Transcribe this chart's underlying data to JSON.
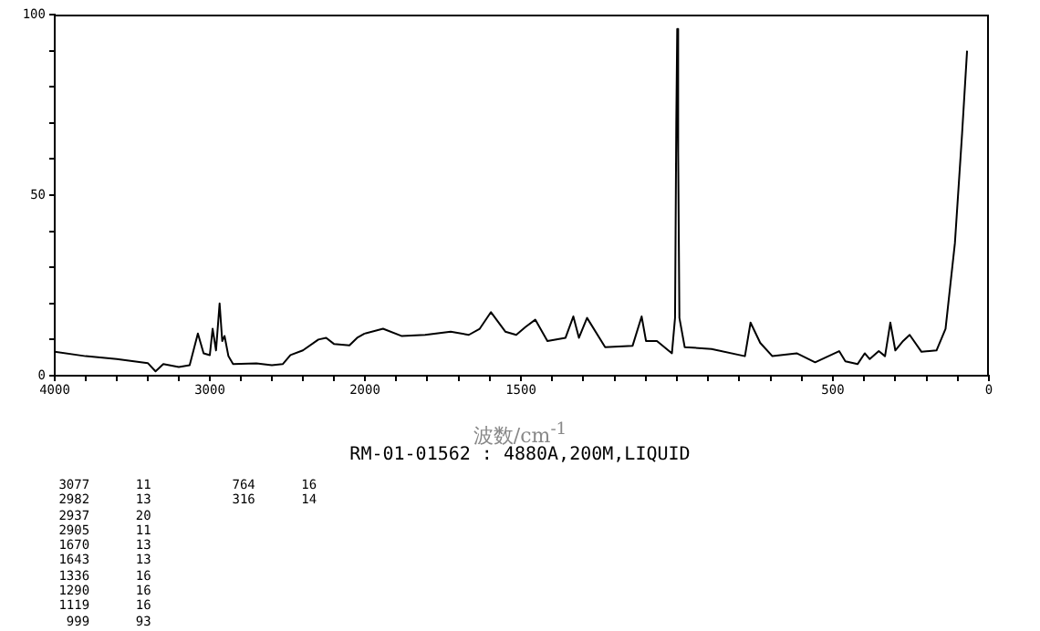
{
  "chart_data": [
    {
      "type": "line",
      "xlim": [
        4000,
        2000
      ],
      "xticks": [
        4000,
        {
          "value": 3800,
          "label": null
        },
        {
          "value": 3600,
          "label": null
        },
        {
          "value": 3400,
          "label": null
        },
        {
          "value": 3200,
          "label": null
        },
        3000,
        {
          "value": 2800,
          "label": null
        },
        {
          "value": 2600,
          "label": null
        },
        {
          "value": 2400,
          "label": null
        },
        {
          "value": 2200,
          "label": null
        },
        2000
      ],
      "ylim": [
        0,
        100
      ],
      "yticks": [
        0,
        {
          "value": 10,
          "label": null
        },
        {
          "value": 20,
          "label": null
        },
        {
          "value": 30,
          "label": null
        },
        {
          "value": 40,
          "label": null
        },
        50,
        {
          "value": 60,
          "label": null
        },
        {
          "value": 70,
          "label": null
        },
        {
          "value": 80,
          "label": null
        },
        {
          "value": 90,
          "label": null
        },
        100
      ],
      "grid": false,
      "marker": "none",
      "series": [
        {
          "color": "#000000",
          "x": [
            4000,
            3800,
            3600,
            3400,
            3350,
            3300,
            3200,
            3130,
            3077,
            3040,
            3000,
            2982,
            2960,
            2937,
            2920,
            2905,
            2880,
            2850,
            2700,
            2600,
            2530,
            2480,
            2400,
            2300,
            2250,
            2200,
            2100,
            2050,
            2000
          ],
          "values": [
            6.6,
            5.4,
            4.6,
            3.5,
            1.2,
            3.2,
            2.4,
            2.9,
            11.7,
            6.2,
            5.7,
            13,
            7,
            20,
            9.6,
            11,
            5.4,
            3.2,
            3.4,
            2.9,
            3.2,
            5.7,
            7,
            10,
            10.5,
            8.8,
            8.4,
            10.5,
            11.7
          ]
        }
      ]
    },
    {
      "type": "line",
      "xlim": [
        2000,
        0
      ],
      "xticks": [
        {
          "value": 1900,
          "label": null
        },
        {
          "value": 1800,
          "label": null
        },
        {
          "value": 1700,
          "label": null
        },
        {
          "value": 1600,
          "label": null
        },
        1500,
        {
          "value": 1400,
          "label": null
        },
        {
          "value": 1300,
          "label": null
        },
        {
          "value": 1200,
          "label": null
        },
        {
          "value": 1100,
          "label": null
        },
        {
          "value": 1000,
          "label": null
        },
        {
          "value": 900,
          "label": null
        },
        {
          "value": 800,
          "label": null
        },
        {
          "value": 700,
          "label": null
        },
        {
          "value": 600,
          "label": null
        },
        500,
        {
          "value": 400,
          "label": null
        },
        {
          "value": 300,
          "label": null
        },
        {
          "value": 200,
          "label": null
        },
        {
          "value": 100,
          "label": null
        },
        0
      ],
      "ylim": [
        0,
        100
      ],
      "tick_labels": "x",
      "grid": false,
      "marker": "none",
      "xlabel": "波数/cm$^{-1}$",
      "annotations": [
        "RM-01-01562 : 4880A,200M,LIQUID",
        "3077 11",
        "2982 13",
        "2937 20",
        "2905 11",
        "1670 13",
        "1643 13",
        "1336 16",
        "1290 16",
        "1119 16",
        "999 93",
        "764 16",
        "316 14"
      ],
      "series": [
        {
          "color": "#000000",
          "x": [
            2000,
            1942,
            1883,
            1807,
            1725,
            1667,
            1632,
            1596,
            1550,
            1515,
            1485,
            1454,
            1415,
            1357,
            1332,
            1314,
            1288,
            1230,
            1142,
            1113,
            1099,
            1064,
            1016,
            1006,
            1002,
            999,
            996,
            992,
            975,
            889,
            782,
            764,
            733,
            694,
            616,
            557,
            480,
            460,
            421,
            398,
            382,
            353,
            333,
            316,
            300,
            275,
            254,
            216,
            168,
            139,
            109,
            86,
            70
          ],
          "values": [
            11.7,
            13,
            11,
            11.3,
            12.2,
            11.3,
            13,
            17.6,
            12.2,
            11.3,
            13.5,
            15.5,
            9.6,
            10.5,
            16.4,
            10.5,
            16,
            7.9,
            8.3,
            16.4,
            9.6,
            9.6,
            6.2,
            16,
            70,
            96,
            62,
            16,
            7.9,
            7.4,
            5.4,
            14.7,
            9.1,
            5.4,
            6.2,
            3.7,
            6.8,
            4,
            3.2,
            6.2,
            4.6,
            6.8,
            5.4,
            14.7,
            7,
            9.6,
            11.3,
            6.6,
            7,
            13,
            36.7,
            67,
            90
          ]
        }
      ]
    }
  ]
}
